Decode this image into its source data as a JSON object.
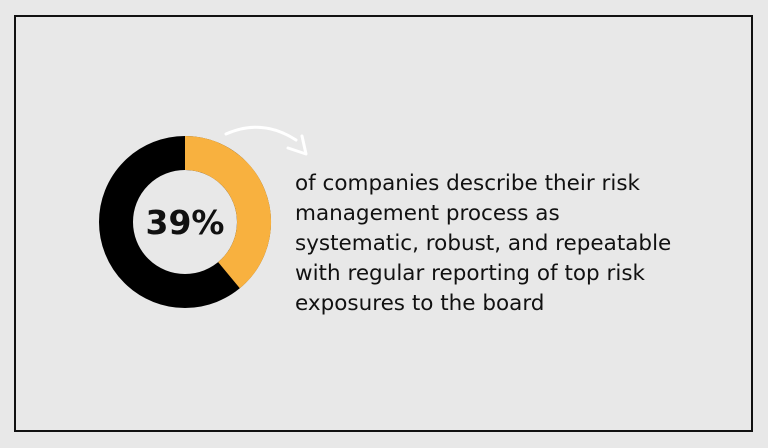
{
  "chart_data": {
    "type": "donut",
    "values": [
      39
    ],
    "value_labels": [
      "39%"
    ],
    "range": [
      0,
      100
    ],
    "color": "#f8b13f",
    "track_color": "#000000",
    "caption_lines": [
      "of companies describe their risk",
      "management process as",
      "systematic, robust, and repeatable",
      "with regular reporting of top risk",
      "exposures to the board"
    ]
  }
}
